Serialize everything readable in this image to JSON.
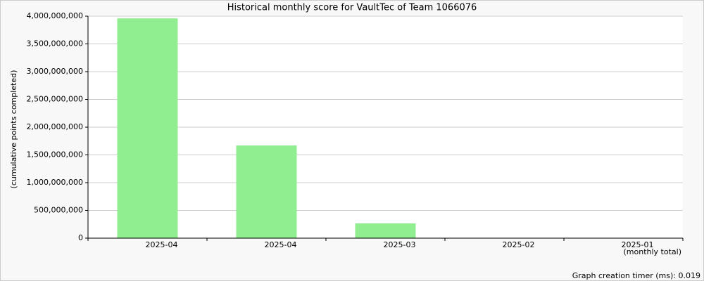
{
  "chart_data": {
    "type": "bar",
    "title": "Historical monthly score for VaultTec of Team 1066076",
    "y_label": "(cumulative points completed)",
    "x_label": "(monthly total)",
    "footer": "Graph creation timer (ms): 0.019",
    "categories": [
      "2025-04",
      "2025-04",
      "2025-03",
      "2025-02",
      "2025-01"
    ],
    "values": [
      3960000000,
      1670000000,
      266000000,
      0,
      0
    ],
    "color": "#90ee90",
    "ylim": [
      0,
      4000000000
    ],
    "yticks": [
      0,
      {
        "value": 500000000,
        "label": "500,000,000"
      },
      {
        "value": 1000000000,
        "label": "1,000,000,000"
      },
      {
        "value": 1500000000,
        "label": "1,500,000,000"
      },
      {
        "value": 2000000000,
        "label": "2,000,000,000"
      },
      {
        "value": 2500000000,
        "label": "2,500,000,000"
      },
      {
        "value": 3000000000,
        "label": "3,000,000,000"
      },
      {
        "value": 3500000000,
        "label": "3,500,000,000"
      },
      {
        "value": 4000000000,
        "label": "4,000,000,000"
      }
    ],
    "grid": true
  }
}
